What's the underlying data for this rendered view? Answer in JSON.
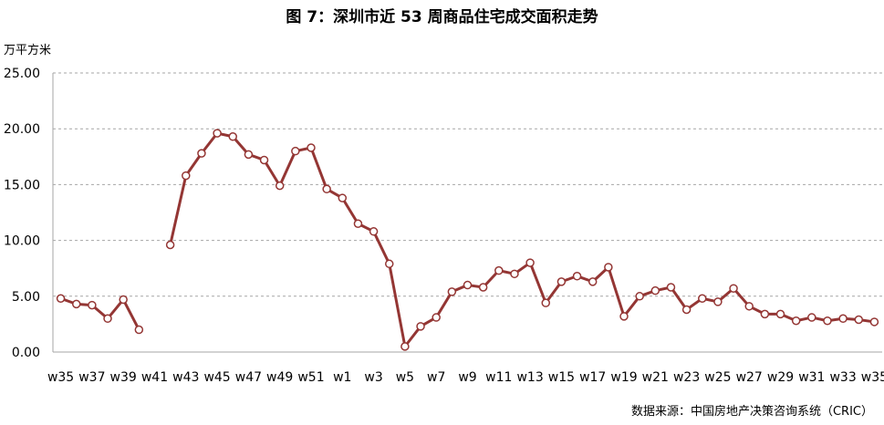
{
  "title": "图 7：深圳市近 53 周商品住宅成交面积走势",
  "unit_label": "万平方米",
  "source": "数据来源：中国房地产决策咨询系统（CRIC）",
  "colors": {
    "line": "#943634",
    "marker_fill": "#ffffff",
    "grid": "#a6a6a6",
    "axis": "#a6a6a6"
  },
  "chart_data": {
    "type": "line",
    "title": "图 7：深圳市近 53 周商品住宅成交面积走势",
    "ylabel": "万平方米",
    "xlabel": "",
    "ylim": [
      0,
      25
    ],
    "yticks": [
      "0.00",
      "5.00",
      "10.00",
      "15.00",
      "20.00",
      "25.00"
    ],
    "grid": "horizontal-dashed",
    "legend": "none",
    "categories": [
      "w35",
      "w36",
      "w37",
      "w38",
      "w39",
      "w40",
      "w41",
      "w42",
      "w43",
      "w44",
      "w45",
      "w46",
      "w47",
      "w48",
      "w49",
      "w50",
      "w51",
      "w52",
      "w1",
      "w2",
      "w3",
      "w4",
      "w5",
      "w6",
      "w7",
      "w8",
      "w9",
      "w10",
      "w11",
      "w12",
      "w13",
      "w14",
      "w15",
      "w16",
      "w17",
      "w18",
      "w19",
      "w20",
      "w21",
      "w22",
      "w23",
      "w24",
      "w25",
      "w26",
      "w27",
      "w28",
      "w29",
      "w30",
      "w31",
      "w32",
      "w33",
      "w34",
      "w35"
    ],
    "xtick_labels": [
      "w35",
      "",
      "w37",
      "",
      "w39",
      "",
      "w41",
      "",
      "w43",
      "",
      "w45",
      "",
      "w47",
      "",
      "w49",
      "",
      "w51",
      "",
      "w1",
      "",
      "w3",
      "",
      "w5",
      "",
      "w7",
      "",
      "w9",
      "",
      "w11",
      "",
      "w13",
      "",
      "w15",
      "",
      "w17",
      "",
      "w19",
      "",
      "w21",
      "",
      "w23",
      "",
      "w25",
      "",
      "w27",
      "",
      "w29",
      "",
      "w31",
      "",
      "w33",
      "",
      "w35"
    ],
    "series": [
      {
        "values": [
          4.8,
          4.3,
          4.2,
          3.0,
          4.7,
          2.0,
          null,
          9.6,
          15.8,
          17.8,
          19.6,
          19.3,
          17.7,
          17.2,
          14.9,
          18.0,
          18.3,
          14.6,
          13.8,
          11.5,
          10.8,
          7.9,
          0.5,
          2.3,
          3.1,
          5.4,
          6.0,
          5.8,
          7.3,
          7.0,
          8.0,
          4.4,
          6.3,
          6.8,
          6.3,
          7.6,
          3.2,
          5.0,
          5.5,
          5.8,
          3.8,
          4.8,
          4.5,
          5.7,
          4.1,
          3.4,
          3.4,
          2.8,
          3.1,
          2.8,
          3.0,
          2.9,
          2.7
        ]
      }
    ]
  }
}
